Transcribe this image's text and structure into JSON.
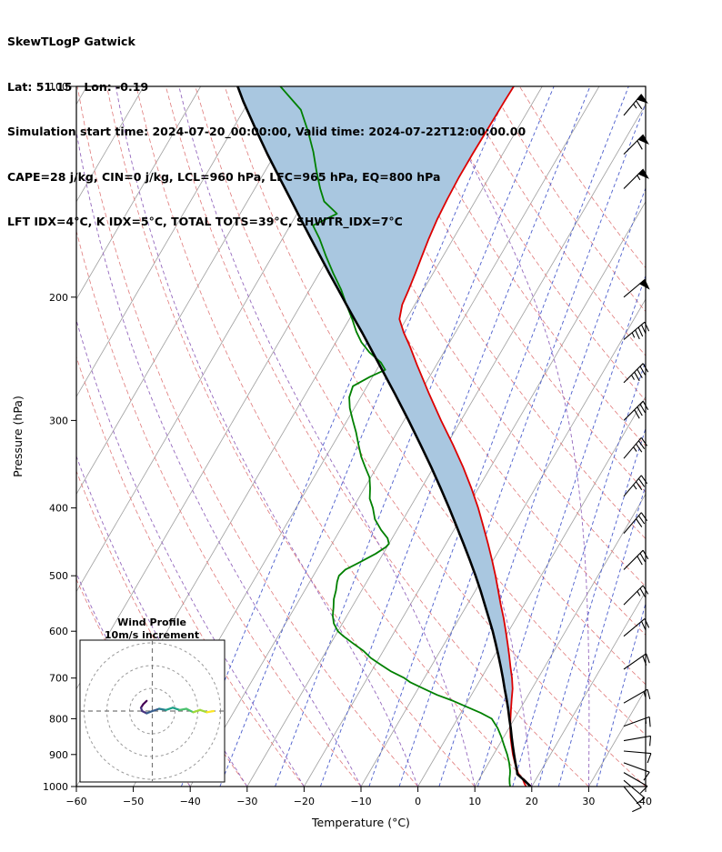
{
  "header": {
    "title": "SkewTLogP Gatwick",
    "location": "Lat: 51.15   Lon: -0.19",
    "times": "Simulation start time: 2024-07-20_00:00:00, Valid time: 2024-07-22T12:00:00.00",
    "indices_line1": "CAPE=28 j/kg, CIN=0 j/kg, LCL=960 hPa, LFC=965 hPa, EQ=800 hPa",
    "indices_line2": "LFT IDX=4°C, K IDX=5°C, TOTAL TOTS=39°C, SHWTR_IDX=7°C"
  },
  "chart_data": {
    "type": "skewt_log_p",
    "xlabel": "Temperature (°C)",
    "ylabel": "Pressure (hPa)",
    "xlim": [
      -60,
      40
    ],
    "ylim": [
      1000,
      100
    ],
    "skew": 0.584,
    "x_ticks": [
      -60,
      -50,
      -40,
      -30,
      -20,
      -10,
      0,
      10,
      20,
      30,
      40
    ],
    "x_tick_labels": [
      "−60",
      "−50",
      "−40",
      "−30",
      "−20",
      "−10",
      "0",
      "10",
      "20",
      "30",
      "40"
    ],
    "y_ticks": [
      100,
      200,
      300,
      400,
      500,
      600,
      700,
      800,
      900,
      1000
    ],
    "isotherms": {
      "start": -130,
      "end": 40,
      "step": 10,
      "color": "#9e9e9e"
    },
    "dry_adiabats": {
      "start": -40,
      "end": 150,
      "step": 10,
      "color": "#e07a7a"
    },
    "moist_adiabats": {
      "start": -40,
      "end": 40,
      "step": 10,
      "color": "#9467bd"
    },
    "mixing_ratio_lines": {
      "values": [
        0.1,
        0.2,
        0.5,
        1,
        2,
        3,
        5,
        8,
        12,
        16,
        20,
        30
      ],
      "color": "#4a5ccc"
    },
    "temperature_profile": {
      "color": "#dd0000",
      "points": [
        [
          1000,
          19
        ],
        [
          990,
          18.4
        ],
        [
          975,
          17.6
        ],
        [
          960,
          16.4
        ],
        [
          950,
          15.9
        ],
        [
          925,
          14.6
        ],
        [
          900,
          13.4
        ],
        [
          875,
          12.3
        ],
        [
          850,
          11.2
        ],
        [
          825,
          10.2
        ],
        [
          800,
          9.3
        ],
        [
          775,
          8.4
        ],
        [
          750,
          7.5
        ],
        [
          725,
          6.6
        ],
        [
          700,
          5.4
        ],
        [
          675,
          4
        ],
        [
          650,
          2.6
        ],
        [
          625,
          1.1
        ],
        [
          600,
          -0.5
        ],
        [
          575,
          -2.2
        ],
        [
          550,
          -4.1
        ],
        [
          525,
          -6
        ],
        [
          500,
          -8
        ],
        [
          475,
          -10.2
        ],
        [
          450,
          -12.6
        ],
        [
          425,
          -15.2
        ],
        [
          400,
          -18
        ],
        [
          375,
          -21.2
        ],
        [
          350,
          -24.8
        ],
        [
          325,
          -28.9
        ],
        [
          300,
          -33.5
        ],
        [
          275,
          -38.3
        ],
        [
          250,
          -43.4
        ],
        [
          235,
          -46.6
        ],
        [
          225,
          -49
        ],
        [
          215,
          -51.2
        ],
        [
          205,
          -52.2
        ],
        [
          195,
          -52.6
        ],
        [
          185,
          -53.1
        ],
        [
          175,
          -53.7
        ],
        [
          165,
          -54.3
        ],
        [
          155,
          -54.8
        ],
        [
          145,
          -55.1
        ],
        [
          135,
          -55.3
        ],
        [
          125,
          -55.3
        ],
        [
          115,
          -55.2
        ],
        [
          105,
          -55.1
        ],
        [
          100,
          -55
        ]
      ]
    },
    "dewpoint_profile": {
      "color": "#008000",
      "points": [
        [
          1000,
          16.2
        ],
        [
          990,
          15.8
        ],
        [
          975,
          15.3
        ],
        [
          960,
          14.9
        ],
        [
          950,
          14.6
        ],
        [
          925,
          13.6
        ],
        [
          900,
          12.4
        ],
        [
          875,
          11
        ],
        [
          850,
          9.6
        ],
        [
          825,
          8
        ],
        [
          800,
          6
        ],
        [
          785,
          3.5
        ],
        [
          770,
          0.5
        ],
        [
          755,
          -2.5
        ],
        [
          740,
          -6
        ],
        [
          725,
          -9
        ],
        [
          710,
          -12
        ],
        [
          700,
          -13.5
        ],
        [
          685,
          -16.5
        ],
        [
          670,
          -19
        ],
        [
          655,
          -21.5
        ],
        [
          640,
          -23.5
        ],
        [
          625,
          -26
        ],
        [
          610,
          -28.5
        ],
        [
          600,
          -30
        ],
        [
          585,
          -31.5
        ],
        [
          570,
          -32.5
        ],
        [
          555,
          -33.2
        ],
        [
          540,
          -34
        ],
        [
          525,
          -34.5
        ],
        [
          510,
          -35.2
        ],
        [
          500,
          -35.5
        ],
        [
          490,
          -35
        ],
        [
          478,
          -33.2
        ],
        [
          465,
          -31.3
        ],
        [
          455,
          -30.2
        ],
        [
          450,
          -30
        ],
        [
          442,
          -30.8
        ],
        [
          430,
          -32.8
        ],
        [
          415,
          -35
        ],
        [
          400,
          -36.5
        ],
        [
          388,
          -38
        ],
        [
          375,
          -39
        ],
        [
          362,
          -40.2
        ],
        [
          350,
          -42
        ],
        [
          338,
          -43.8
        ],
        [
          325,
          -45.5
        ],
        [
          312,
          -47.2
        ],
        [
          300,
          -49
        ],
        [
          288,
          -50.8
        ],
        [
          278,
          -52
        ],
        [
          268,
          -52.5
        ],
        [
          260,
          -50.5
        ],
        [
          254,
          -48.5
        ],
        [
          248,
          -50
        ],
        [
          240,
          -53
        ],
        [
          232,
          -55.5
        ],
        [
          224,
          -57.5
        ],
        [
          215,
          -59.5
        ],
        [
          205,
          -62
        ],
        [
          195,
          -64.5
        ],
        [
          185,
          -67.5
        ],
        [
          175,
          -70.5
        ],
        [
          165,
          -73.5
        ],
        [
          158,
          -76
        ],
        [
          152,
          -73
        ],
        [
          146,
          -76.5
        ],
        [
          140,
          -78.5
        ],
        [
          132,
          -81
        ],
        [
          124,
          -83.5
        ],
        [
          116,
          -86.5
        ],
        [
          108,
          -90
        ],
        [
          100,
          -96
        ]
      ]
    },
    "parcel_profile": {
      "color": "#000000",
      "points": [
        [
          1000,
          19.8
        ],
        [
          985,
          18.5
        ],
        [
          975,
          17.6
        ],
        [
          960,
          16.2
        ],
        [
          950,
          15.8
        ],
        [
          925,
          14.7
        ],
        [
          900,
          13.6
        ],
        [
          875,
          12.5
        ],
        [
          850,
          11.4
        ],
        [
          825,
          10.3
        ],
        [
          800,
          9.1
        ],
        [
          775,
          7.9
        ],
        [
          750,
          6.6
        ],
        [
          725,
          5.2
        ],
        [
          700,
          3.8
        ],
        [
          675,
          2.3
        ],
        [
          650,
          0.7
        ],
        [
          625,
          -1
        ],
        [
          600,
          -2.8
        ],
        [
          575,
          -4.8
        ],
        [
          550,
          -6.9
        ],
        [
          525,
          -9.1
        ],
        [
          500,
          -11.5
        ],
        [
          475,
          -14.1
        ],
        [
          450,
          -16.9
        ],
        [
          425,
          -19.9
        ],
        [
          400,
          -23.1
        ],
        [
          375,
          -26.6
        ],
        [
          350,
          -30.4
        ],
        [
          325,
          -34.6
        ],
        [
          300,
          -39.2
        ],
        [
          275,
          -44.3
        ],
        [
          250,
          -50
        ],
        [
          235,
          -53.7
        ],
        [
          225,
          -56.3
        ],
        [
          215,
          -59.1
        ],
        [
          205,
          -62
        ],
        [
          195,
          -65
        ],
        [
          185,
          -68.2
        ],
        [
          175,
          -71.5
        ],
        [
          165,
          -75
        ],
        [
          155,
          -78.7
        ],
        [
          145,
          -82.6
        ],
        [
          135,
          -86.8
        ],
        [
          125,
          -91.3
        ],
        [
          115,
          -96
        ],
        [
          105,
          -101
        ],
        [
          100,
          -103.5
        ]
      ]
    },
    "cape_area": {
      "color": "#a9c7e0",
      "top_pressure": 100,
      "bottom_pressure": 805
    },
    "wind_barbs": {
      "color": "#000000",
      "units": "kt",
      "levels": [
        [
          110,
          40,
          65
        ],
        [
          125,
          45,
          60
        ],
        [
          140,
          45,
          55
        ],
        [
          200,
          50,
          50
        ],
        [
          230,
          50,
          45
        ],
        [
          265,
          45,
          45
        ],
        [
          300,
          45,
          40
        ],
        [
          340,
          40,
          35
        ],
        [
          385,
          40,
          35
        ],
        [
          435,
          40,
          30
        ],
        [
          490,
          45,
          30
        ],
        [
          550,
          45,
          25
        ],
        [
          610,
          50,
          20
        ],
        [
          680,
          55,
          20
        ],
        [
          760,
          60,
          15
        ],
        [
          820,
          70,
          15
        ],
        [
          860,
          80,
          12
        ],
        [
          890,
          95,
          10
        ],
        [
          925,
          110,
          10
        ],
        [
          955,
          120,
          10
        ],
        [
          980,
          130,
          10
        ],
        [
          1000,
          140,
          10
        ]
      ]
    },
    "hodograph": {
      "title": "Wind Profile",
      "subtitle": "10m/s increment",
      "ring_interval_ms": 10,
      "rings": [
        10,
        20,
        30
      ],
      "points_uv": [
        [
          -2.5,
          4.5
        ],
        [
          -4,
          3
        ],
        [
          -5,
          1.5
        ],
        [
          -4.5,
          0
        ],
        [
          -2.5,
          -1
        ],
        [
          0,
          0
        ],
        [
          3,
          1
        ],
        [
          6,
          0.5
        ],
        [
          9,
          1.5
        ],
        [
          12,
          0.5
        ],
        [
          15,
          1
        ],
        [
          18,
          -0.5
        ],
        [
          21,
          0.5
        ],
        [
          24,
          -0.5
        ],
        [
          27,
          0
        ]
      ],
      "colormap": [
        "#440154",
        "#46327e",
        "#365c8d",
        "#277f8e",
        "#1fa187",
        "#4ac16d",
        "#a0da39",
        "#fde725"
      ]
    }
  }
}
